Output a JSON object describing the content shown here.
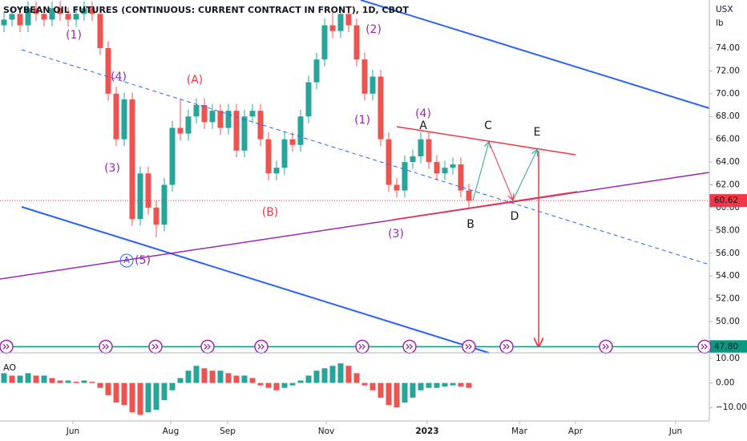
{
  "chart_data": {
    "type": "candlestick",
    "title": "SOYBEAN OIL FUTURES (CONTINUOUS: CURRENT CONTRACT IN FRONT), 1D, CBOT",
    "unit_label": [
      "USX",
      "lb"
    ],
    "up_color": "#26a69a",
    "down_color": "#ef5350",
    "xlim": [
      -0.5,
      88
    ],
    "xticks": [
      {
        "value": 8.6,
        "label": "Jun"
      },
      {
        "value": 20.8,
        "label": "Aug"
      },
      {
        "value": 27.9,
        "label": "Sep"
      },
      {
        "value": 40.2,
        "label": "Nov"
      },
      {
        "value": 52.8,
        "label": "2023"
      },
      {
        "value": 64.3,
        "label": "Mar"
      },
      {
        "value": 71.3,
        "label": "Apr"
      },
      {
        "value": 83.8,
        "label": "Jun"
      }
    ],
    "ylim": [
      47.26,
      78.22
    ],
    "yticks": [
      {
        "value": 50,
        "label": "50.00"
      },
      {
        "value": 52,
        "label": "52.00"
      },
      {
        "value": 54,
        "label": "54.00"
      },
      {
        "value": 56,
        "label": "56.00"
      },
      {
        "value": 58,
        "label": "58.00"
      },
      {
        "value": 60,
        "label": "60.00"
      },
      {
        "value": 62,
        "label": "62.00"
      },
      {
        "value": 64,
        "label": "64.00"
      },
      {
        "value": 66,
        "label": "66.00"
      },
      {
        "value": 68,
        "label": "68.00"
      },
      {
        "value": 70,
        "label": "70.00"
      },
      {
        "value": 72,
        "label": "72.00"
      },
      {
        "value": 74,
        "label": "74.00"
      }
    ],
    "last_price": {
      "value": 60.62,
      "label": "60.62"
    },
    "target_price": {
      "value": 47.8,
      "label": "47.80"
    },
    "ohlc": [
      [
        76,
        77.1,
        75.4,
        76.5
      ],
      [
        76.5,
        77.6,
        75.9,
        77
      ],
      [
        77,
        77.6,
        75.4,
        76
      ],
      [
        76,
        78.1,
        75.4,
        77.5
      ],
      [
        77.5,
        78.1,
        76.4,
        77
      ],
      [
        77,
        77.6,
        75.9,
        76.5
      ],
      [
        76.5,
        78.1,
        75.9,
        77.5
      ],
      [
        77.5,
        78.1,
        76.4,
        77
      ],
      [
        77,
        77.6,
        75.9,
        76.5
      ],
      [
        76.5,
        77.6,
        75.9,
        77
      ],
      [
        77,
        78.1,
        76.4,
        77.5
      ],
      [
        77.5,
        78.1,
        76.4,
        77
      ],
      [
        77,
        77.6,
        73.4,
        74
      ],
      [
        74,
        74.6,
        69.4,
        70
      ],
      [
        70,
        70.6,
        65.4,
        66
      ],
      [
        66,
        70.1,
        65.4,
        69.5
      ],
      [
        69.5,
        70.1,
        58.4,
        59
      ],
      [
        59,
        63.6,
        58.4,
        63
      ],
      [
        63,
        63.6,
        59.4,
        60
      ],
      [
        60,
        60.6,
        57.4,
        58.5
      ],
      [
        58.5,
        62.6,
        57.9,
        62
      ],
      [
        62,
        67.6,
        61.4,
        67
      ],
      [
        67,
        69.6,
        65.9,
        66.5
      ],
      [
        66.5,
        68.6,
        65.9,
        68
      ],
      [
        68,
        69.6,
        67.4,
        69
      ],
      [
        69,
        69.6,
        66.9,
        67.5
      ],
      [
        67.5,
        69.1,
        66.9,
        68.5
      ],
      [
        68.5,
        69.1,
        66.4,
        67
      ],
      [
        67,
        69.1,
        66.4,
        68.5
      ],
      [
        68.5,
        69.1,
        64.4,
        65
      ],
      [
        65,
        68.6,
        64.4,
        68
      ],
      [
        68,
        69.1,
        67.4,
        68.5
      ],
      [
        68.5,
        69.1,
        65.4,
        66
      ],
      [
        66,
        66.6,
        62.4,
        63
      ],
      [
        63,
        64.1,
        62.4,
        63.5
      ],
      [
        63.5,
        66.6,
        62.9,
        66
      ],
      [
        66,
        66.6,
        64.9,
        65.5
      ],
      [
        65.5,
        68.6,
        64.9,
        68
      ],
      [
        68,
        71.6,
        67.4,
        71
      ],
      [
        71,
        73.6,
        70.4,
        73
      ],
      [
        73,
        76.6,
        72.4,
        76
      ],
      [
        76,
        77.1,
        74.9,
        75.5
      ],
      [
        75.5,
        77.6,
        74.9,
        77
      ],
      [
        77,
        77.6,
        75.4,
        76
      ],
      [
        76,
        76.6,
        72.4,
        73
      ],
      [
        73,
        73.6,
        69.4,
        70
      ],
      [
        70,
        72.1,
        69.4,
        71.5
      ],
      [
        71.5,
        72.1,
        65.4,
        66
      ],
      [
        66,
        66.6,
        61.4,
        62
      ],
      [
        62,
        62.6,
        60.9,
        61.5
      ],
      [
        61.5,
        64.6,
        60.9,
        64
      ],
      [
        64,
        65.1,
        63.4,
        64.5
      ],
      [
        64.5,
        66.6,
        63.9,
        66
      ],
      [
        66,
        66.6,
        63.4,
        64
      ],
      [
        64,
        64.6,
        62.4,
        63
      ],
      [
        63,
        64.1,
        62.4,
        63.5
      ],
      [
        63.5,
        64.4,
        62.9,
        63.8
      ],
      [
        63.8,
        64.4,
        60.9,
        61.5
      ],
      [
        61.5,
        62.1,
        60,
        60.6
      ]
    ],
    "annotations": [
      "(1)",
      "(4)",
      "(3)",
      "(A)",
      "(5)",
      "A",
      "(B)",
      "(2)",
      "(1)",
      "(4)",
      "A",
      "(3)",
      "B",
      "C",
      "D",
      "E"
    ],
    "oscillator": {
      "name": "AO",
      "ylim": [
        -15.5,
        12.3
      ],
      "yticks": [
        {
          "value": 10,
          "label": "10.00"
        },
        {
          "value": 0,
          "label": "0.00"
        },
        {
          "value": -10,
          "label": "−10.00"
        }
      ],
      "values": [
        4,
        3,
        3,
        4,
        3,
        3,
        2,
        1,
        1,
        0.5,
        1,
        0.5,
        -2,
        -5,
        -8,
        -9,
        -12,
        -13,
        -12,
        -11,
        -7,
        -3,
        2,
        5,
        7,
        6,
        5,
        5,
        4,
        3,
        3,
        2,
        -1,
        -2,
        -3,
        -2,
        -1,
        1,
        3,
        5,
        6,
        7,
        8,
        7,
        4,
        -1,
        -3,
        -6,
        -9,
        -10,
        -8,
        -6,
        -3,
        -2,
        -2,
        -1.5,
        -1,
        -1.5,
        -2
      ]
    }
  }
}
